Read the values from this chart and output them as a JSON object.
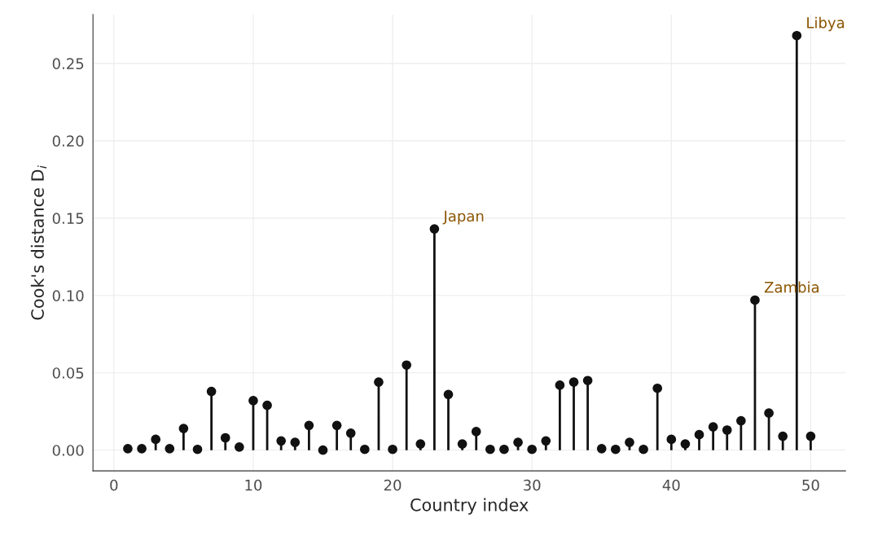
{
  "chart_data": {
    "type": "lollipop",
    "xlabel": "Country index",
    "ylabel": "Cook's distance D$_{i}$",
    "x": [
      1,
      2,
      3,
      4,
      5,
      6,
      7,
      8,
      9,
      10,
      11,
      12,
      13,
      14,
      15,
      16,
      17,
      18,
      19,
      20,
      21,
      22,
      23,
      24,
      25,
      26,
      27,
      28,
      29,
      30,
      31,
      32,
      33,
      34,
      35,
      36,
      37,
      38,
      39,
      40,
      41,
      42,
      43,
      44,
      45,
      46,
      47,
      48,
      49,
      50
    ],
    "series": [
      {
        "color": "#111111",
        "values": [
          0.001,
          0.001,
          0.007,
          0.001,
          0.014,
          0.0005,
          0.038,
          0.008,
          0.002,
          0.032,
          0.029,
          0.006,
          0.005,
          0.016,
          0.0,
          0.016,
          0.011,
          0.0005,
          0.044,
          0.0005,
          0.055,
          0.004,
          0.143,
          0.036,
          0.004,
          0.012,
          0.0005,
          0.0005,
          0.005,
          0.0005,
          0.006,
          0.042,
          0.044,
          0.045,
          0.001,
          0.0005,
          0.005,
          0.0005,
          0.04,
          0.007,
          0.004,
          0.01,
          0.015,
          0.013,
          0.019,
          0.097,
          0.024,
          0.009,
          0.268,
          0.009
        ]
      }
    ],
    "annotations": [
      {
        "text": "Japan",
        "x": 23,
        "y": 0.143
      },
      {
        "text": "Zambia",
        "x": 46,
        "y": 0.097
      },
      {
        "text": "Libya",
        "x": 49,
        "y": 0.268
      }
    ],
    "xlim": [
      -1.5,
      52.5
    ],
    "ylim": [
      -0.0134,
      0.2816
    ],
    "xticks": [
      0,
      10,
      20,
      30,
      40,
      50
    ],
    "yticks": [
      {
        "value": 0,
        "label": "0.00"
      },
      {
        "value": 0.05,
        "label": "0.05"
      },
      {
        "value": 0.1,
        "label": "0.10"
      },
      {
        "value": 0.15,
        "label": "0.15"
      },
      {
        "value": 0.2,
        "label": "0.20"
      },
      {
        "value": 0.25,
        "label": "0.25"
      }
    ],
    "grid": true,
    "marker": "circle"
  }
}
